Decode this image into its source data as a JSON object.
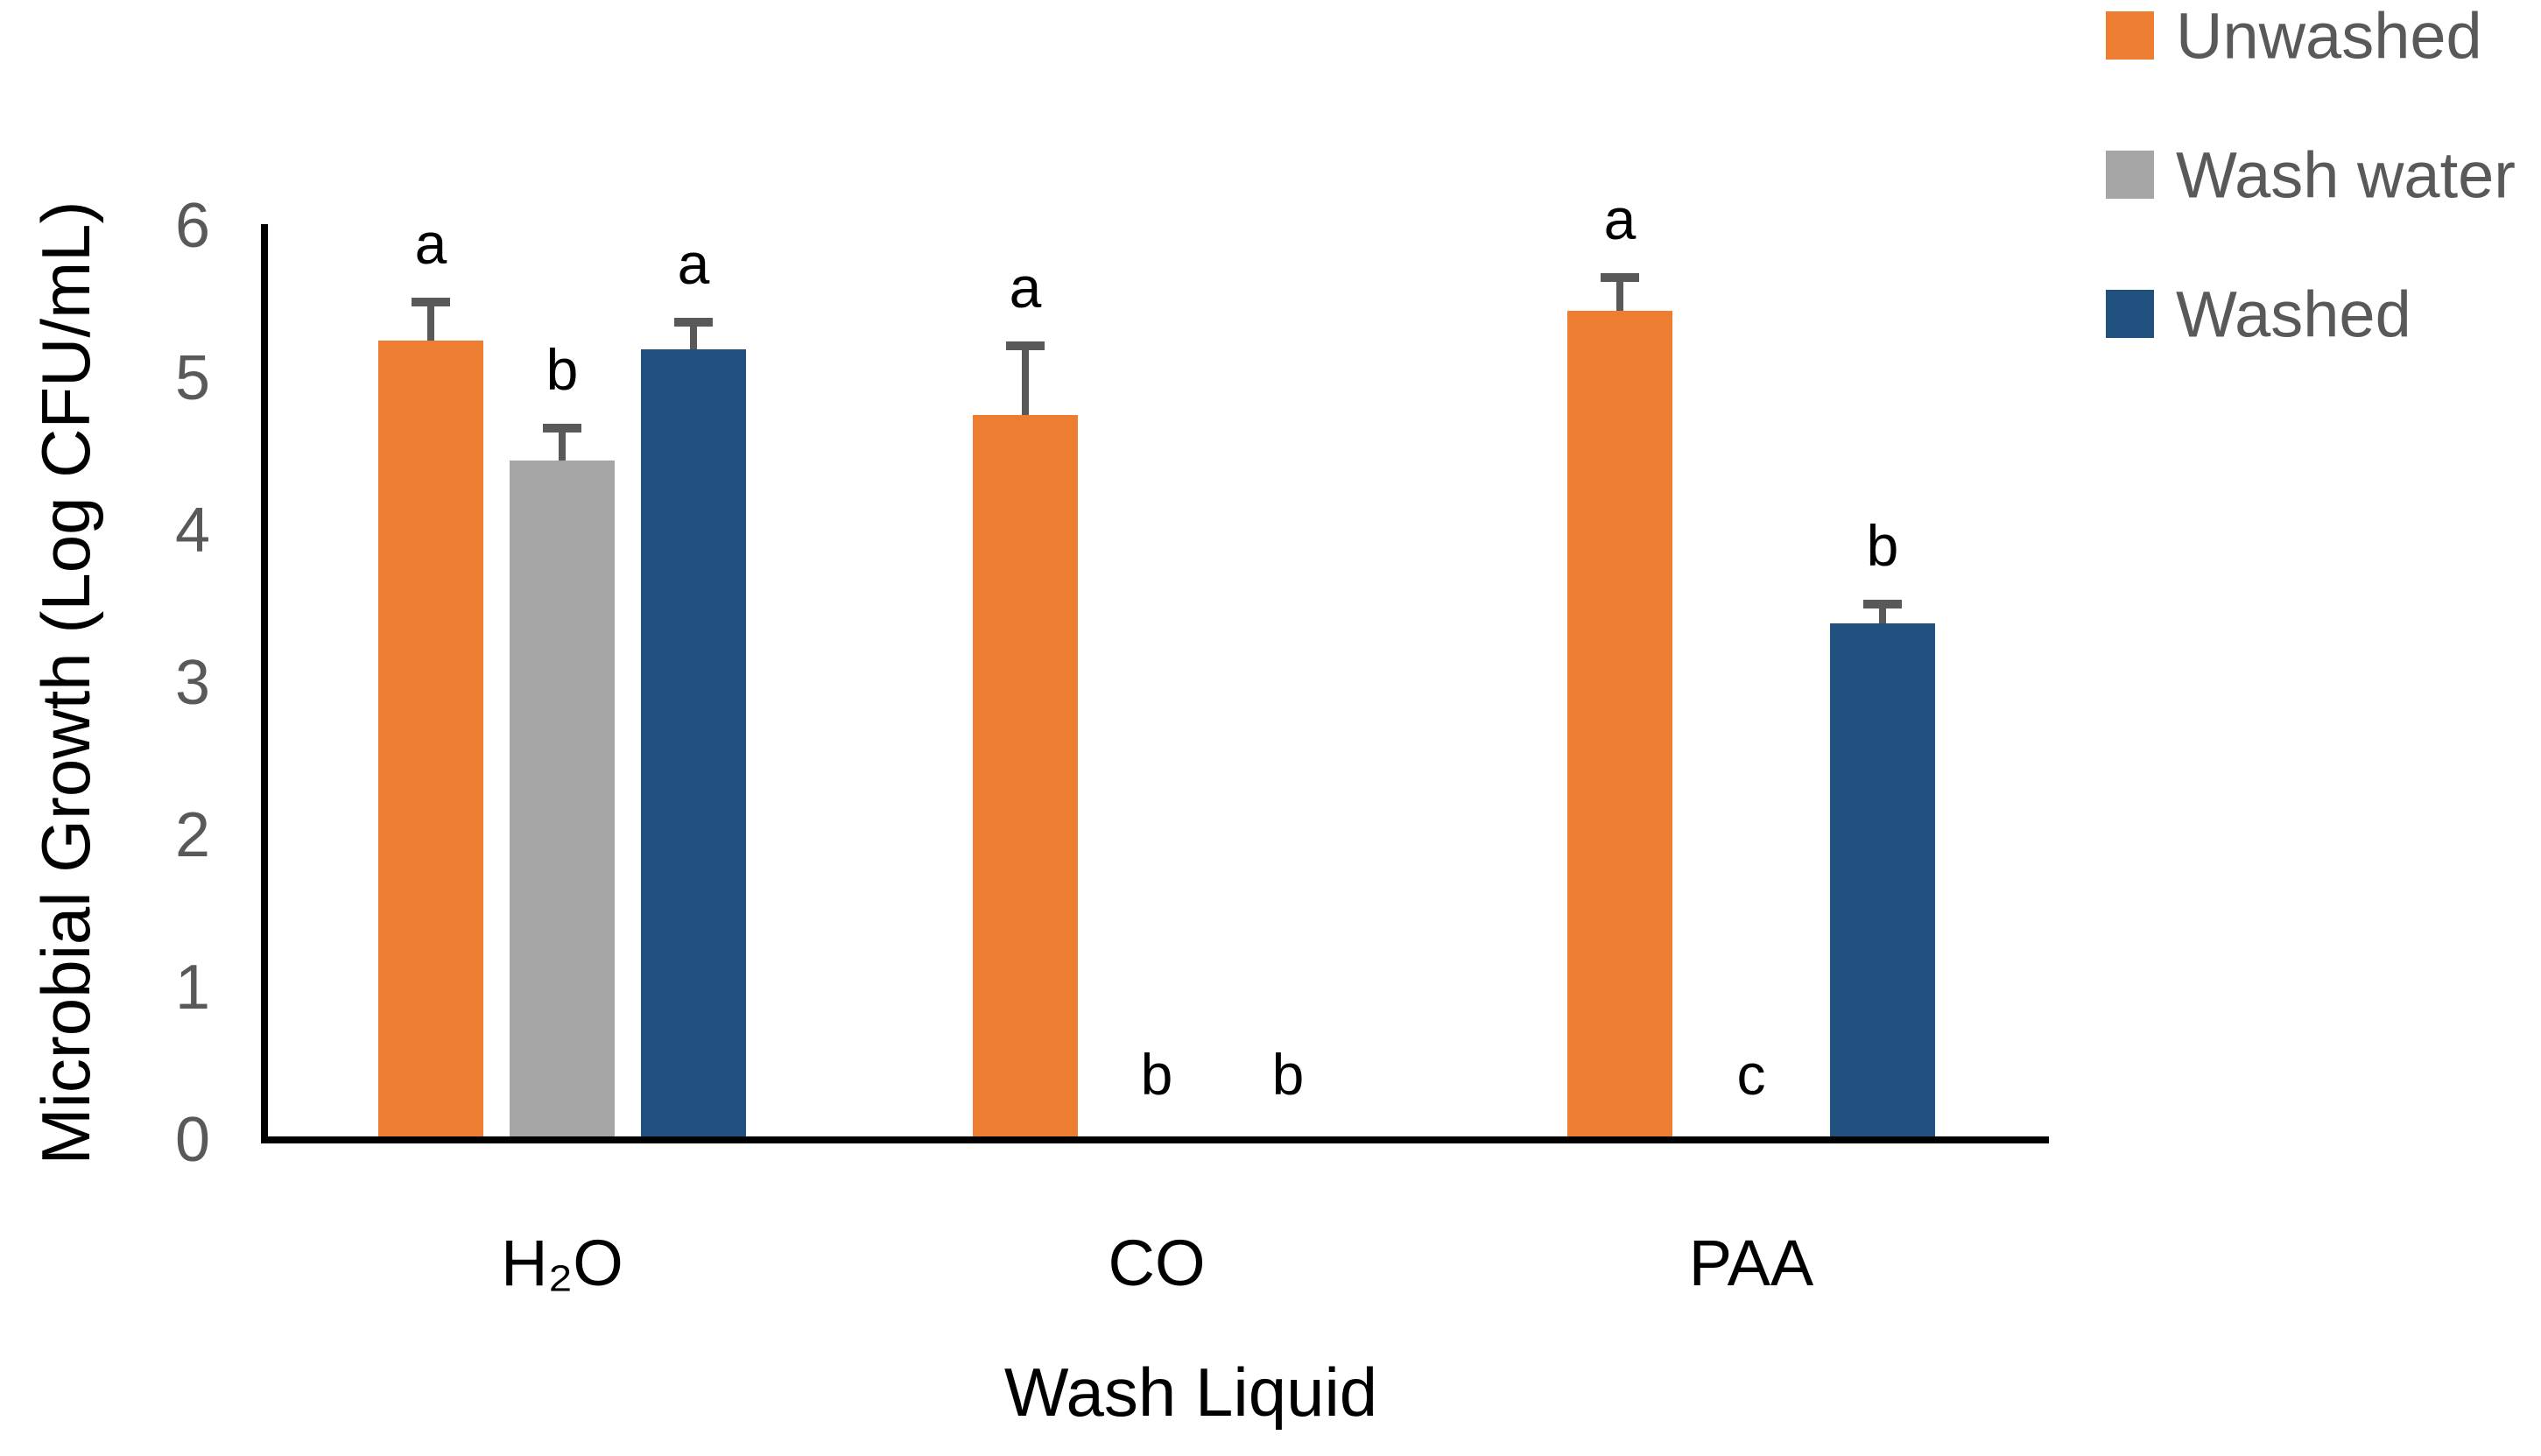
{
  "chart_data": {
    "type": "bar",
    "title": "",
    "xlabel": "Wash Liquid",
    "ylabel": "Microbial Growth (Log CFU/mL)",
    "categories": [
      "H₂O",
      "CO",
      "PAA"
    ],
    "y_ticks": [
      0,
      1,
      2,
      3,
      4,
      5,
      6
    ],
    "ylim": [
      0,
      6
    ],
    "grid": false,
    "legend_position": "top-right",
    "series": [
      {
        "name": "Unwashed",
        "color": "#ED7D31",
        "values": [
          5.25,
          4.76,
          5.44
        ],
        "errors": [
          0.25,
          0.45,
          0.22
        ],
        "sig_letters": [
          "a",
          "a",
          "a"
        ]
      },
      {
        "name": "Wash water",
        "color": "#A5A5A5",
        "values": [
          4.46,
          0,
          0
        ],
        "errors": [
          0.21,
          null,
          null
        ],
        "sig_letters": [
          "b",
          "b",
          "c"
        ]
      },
      {
        "name": "Washed",
        "color": "#21517E",
        "values": [
          5.19,
          0,
          3.39
        ],
        "errors": [
          0.18,
          null,
          0.13
        ],
        "sig_letters": [
          "a",
          "b",
          "b"
        ]
      }
    ],
    "colors": {
      "axis": "#000000",
      "tick_label": "#595959",
      "legend_text": "#595959",
      "error_bar": "#595959",
      "sig_letter": "#000000"
    }
  }
}
